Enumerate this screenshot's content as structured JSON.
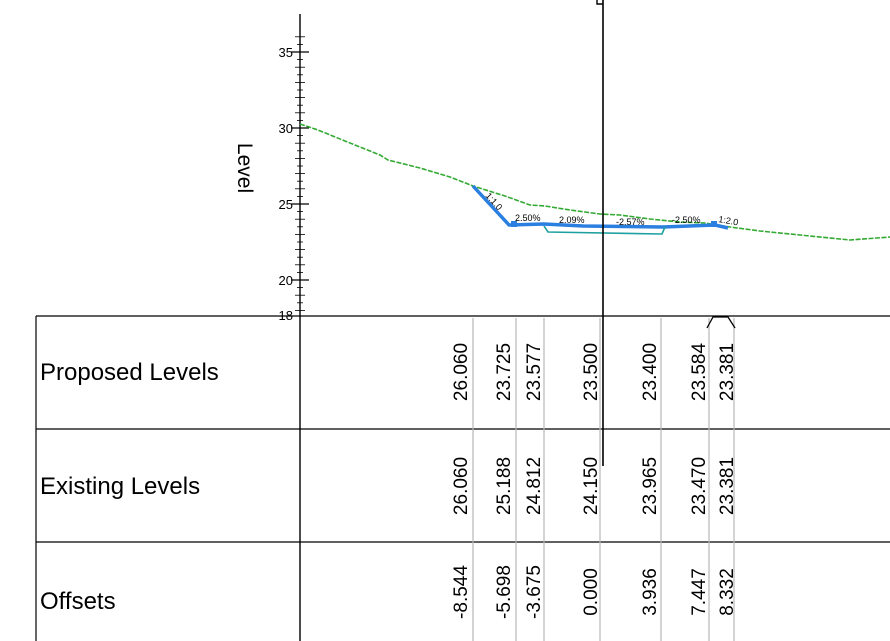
{
  "axis": {
    "ylabel": "Level",
    "ticks": [
      "35",
      "30",
      "25",
      "20",
      "18"
    ]
  },
  "rows": [
    {
      "key": "proposed",
      "label": "Proposed Levels",
      "values": [
        "26.060",
        "23.725",
        "23.577",
        "23.500",
        "23.400",
        "23.584",
        "23.381"
      ]
    },
    {
      "key": "existing",
      "label": "Existing Levels",
      "values": [
        "26.060",
        "25.188",
        "24.812",
        "24.150",
        "23.965",
        "23.470",
        "23.381"
      ]
    },
    {
      "key": "offsets",
      "label": "Offsets",
      "values": [
        "-8.544",
        "-5.698",
        "-3.675",
        "0.000",
        "3.936",
        "7.447",
        "8.332"
      ]
    }
  ],
  "grades": [
    "1:1.0",
    "2.50%",
    "2.09%",
    "-2.57%",
    "-2.50%",
    "1:2.0"
  ],
  "colors": {
    "existing_ground": "#33aa33",
    "proposed_design": "#2b7fe0",
    "grid": "#b8b8b8"
  }
}
